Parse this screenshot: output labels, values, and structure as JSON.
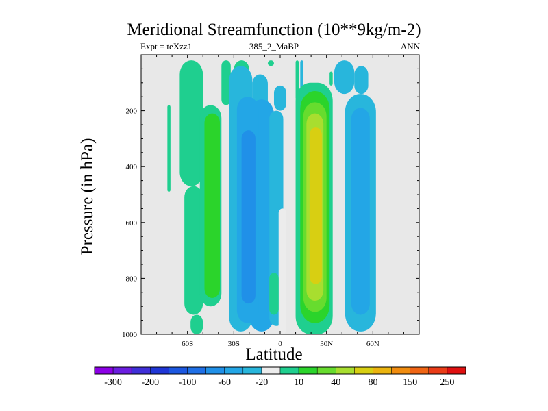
{
  "chart_data": {
    "type": "heatmap",
    "title": "Meridional Streamfunction (10**9kg/m-2)",
    "subtitle_left": "Expt = teXzz1",
    "subtitle_center": "385_2_MaBP",
    "subtitle_right": "ANN",
    "xlabel": "Latitude",
    "ylabel": "Pressure (in hPa)",
    "xlim": [
      -90,
      90
    ],
    "ylim": [
      0,
      1000
    ],
    "xticks": [
      {
        "value": -60,
        "label": "60S"
      },
      {
        "value": -30,
        "label": "30S"
      },
      {
        "value": 0,
        "label": "0"
      },
      {
        "value": 30,
        "label": "30N"
      },
      {
        "value": 60,
        "label": "60N"
      }
    ],
    "yticks": [
      {
        "value": 200,
        "label": "200"
      },
      {
        "value": 400,
        "label": "400"
      },
      {
        "value": 600,
        "label": "600"
      },
      {
        "value": 800,
        "label": "800"
      },
      {
        "value": 1000,
        "label": "1000"
      }
    ],
    "colorbar": {
      "colors": [
        "#8c00e6",
        "#6b1ee0",
        "#3f2fd8",
        "#1f36d6",
        "#1c57e0",
        "#1f6fe6",
        "#2090e8",
        "#23a6e6",
        "#28b6dc",
        "#ececec",
        "#1fcf8f",
        "#2bd42b",
        "#67dc2e",
        "#a8de2f",
        "#d8cf12",
        "#ebb40f",
        "#f08c0f",
        "#f06514",
        "#ea3c17",
        "#e01010"
      ],
      "labels": [
        "-300",
        "-200",
        "-100",
        "-60",
        "-20",
        "10",
        "40",
        "80",
        "150",
        "250"
      ]
    },
    "cells": [
      {
        "lat": [
          -65,
          -50
        ],
        "p": [
          20,
          470
        ],
        "level": 10
      },
      {
        "lat": [
          -62,
          -50
        ],
        "p": [
          470,
          930
        ],
        "level": 10
      },
      {
        "lat": [
          -58,
          -50
        ],
        "p": [
          930,
          1000
        ],
        "level": 10
      },
      {
        "lat": [
          -52,
          -38
        ],
        "p": [
          180,
          900
        ],
        "level": 10
      },
      {
        "lat": [
          -49,
          -39
        ],
        "p": [
          210,
          870
        ],
        "level": 11
      },
      {
        "lat": [
          -73,
          -71
        ],
        "p": [
          180,
          490
        ],
        "level": 10
      },
      {
        "lat": [
          -38,
          -32
        ],
        "p": [
          20,
          180
        ],
        "level": 10
      },
      {
        "lat": [
          -30,
          -20
        ],
        "p": [
          20,
          90
        ],
        "level": 10
      },
      {
        "lat": [
          -33,
          -18
        ],
        "p": [
          40,
          990
        ],
        "level": 8
      },
      {
        "lat": [
          -18,
          -8
        ],
        "p": [
          70,
          280
        ],
        "level": 8
      },
      {
        "lat": [
          -20,
          -4
        ],
        "p": [
          160,
          990
        ],
        "level": 7
      },
      {
        "lat": [
          -28,
          -14
        ],
        "p": [
          150,
          960
        ],
        "level": 7
      },
      {
        "lat": [
          -25,
          -16
        ],
        "p": [
          270,
          890
        ],
        "level": 6
      },
      {
        "lat": [
          -7,
          2
        ],
        "p": [
          200,
          970
        ],
        "level": 8
      },
      {
        "lat": [
          -4,
          4
        ],
        "p": [
          110,
          200
        ],
        "level": 8
      },
      {
        "lat": [
          -1,
          4
        ],
        "p": [
          550,
          1000
        ],
        "level": 9
      },
      {
        "lat": [
          -8,
          -4
        ],
        "p": [
          20,
          40
        ],
        "level": 10
      },
      {
        "lat": [
          -7,
          -1
        ],
        "p": [
          780,
          930
        ],
        "level": 10
      },
      {
        "lat": [
          10,
          12
        ],
        "p": [
          20,
          160
        ],
        "level": 10
      },
      {
        "lat": [
          13,
          15
        ],
        "p": [
          20,
          160
        ],
        "level": 8
      },
      {
        "lat": [
          10,
          34
        ],
        "p": [
          100,
          1000
        ],
        "level": 10
      },
      {
        "lat": [
          13,
          32
        ],
        "p": [
          130,
          960
        ],
        "level": 11
      },
      {
        "lat": [
          15,
          30
        ],
        "p": [
          170,
          920
        ],
        "level": 12
      },
      {
        "lat": [
          17,
          28
        ],
        "p": [
          210,
          880
        ],
        "level": 13
      },
      {
        "lat": [
          19,
          27
        ],
        "p": [
          260,
          820
        ],
        "level": 14
      },
      {
        "lat": [
          32,
          34
        ],
        "p": [
          60,
          110
        ],
        "level": 10
      },
      {
        "lat": [
          35,
          48
        ],
        "p": [
          20,
          140
        ],
        "level": 8
      },
      {
        "lat": [
          42,
          62
        ],
        "p": [
          140,
          990
        ],
        "level": 8
      },
      {
        "lat": [
          48,
          57
        ],
        "p": [
          40,
          140
        ],
        "level": 8
      },
      {
        "lat": [
          46,
          58
        ],
        "p": [
          190,
          930
        ],
        "level": 7
      }
    ]
  }
}
